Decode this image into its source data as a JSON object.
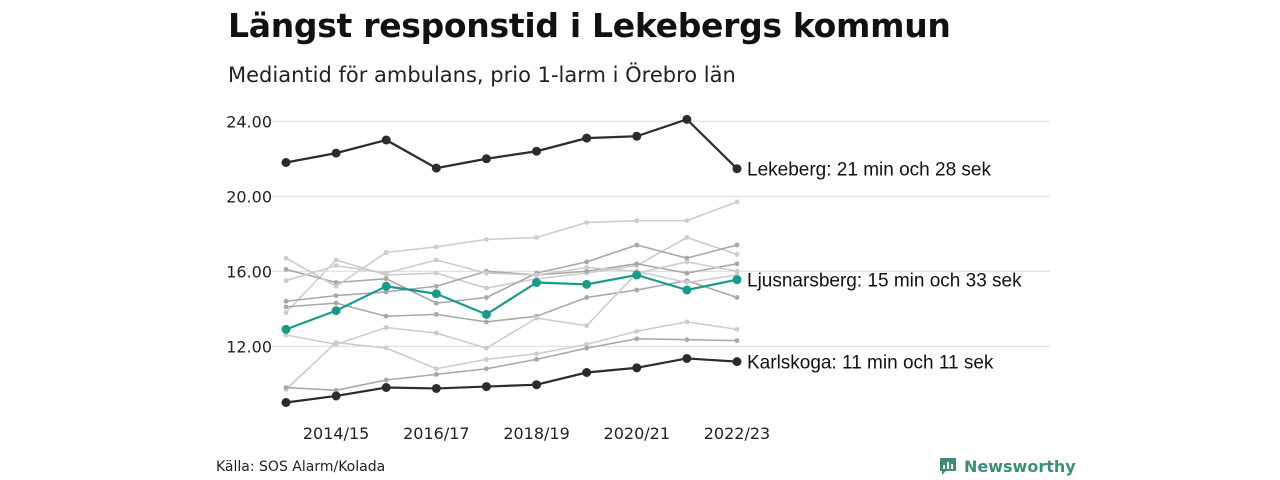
{
  "header": {
    "title": "Längst responstid i Lekebergs kommun",
    "subtitle": "Mediantid för ambulans, prio 1-larm i Örebro län"
  },
  "footer": {
    "source": "Källa: SOS Alarm/Kolada",
    "brand": "Newsworthy"
  },
  "colors": {
    "dark": "#2b2b30",
    "teal": "#1a9a88",
    "grey_light": "#cccccc",
    "grey_mid": "#a8a8a8",
    "grid": "#d9d9d9",
    "brand": "#3b8f7a"
  },
  "chart_data": {
    "type": "line",
    "x": [
      "2013/14",
      "2014/15",
      "2015/16",
      "2016/17",
      "2017/18",
      "2018/19",
      "2019/20",
      "2020/21",
      "2021/22",
      "2022/23"
    ],
    "x_tick_labels": [
      "2014/15",
      "2016/17",
      "2018/19",
      "2020/21",
      "2022/23"
    ],
    "y_ticks": [
      "12.00",
      "16.00",
      "20.00",
      "24.00"
    ],
    "ylim": [
      8.8,
      25.2
    ],
    "grid": "horizontal",
    "highlighted": [
      {
        "name": "Lekeberg",
        "label": "Lekeberg: 21 min och 28 sek",
        "color": "#2b2b30",
        "values": [
          21.8,
          22.3,
          23.0,
          21.5,
          22.0,
          22.4,
          23.1,
          23.2,
          24.1,
          21.47
        ]
      },
      {
        "name": "Ljusnarsberg",
        "label": "Ljusnarsberg: 15 min och 33 sek",
        "color": "#1a9a88",
        "values": [
          12.9,
          13.9,
          15.2,
          14.8,
          13.7,
          15.4,
          15.3,
          15.8,
          15.0,
          15.55
        ]
      },
      {
        "name": "Karlskoga",
        "label": "Karlskoga: 11 min och 11 sek",
        "color": "#2b2b30",
        "values": [
          9.0,
          9.35,
          9.8,
          9.75,
          9.85,
          9.95,
          10.6,
          10.85,
          11.35,
          11.18
        ]
      }
    ],
    "background_series": [
      {
        "color": "#cccccc",
        "values": [
          13.8,
          16.6,
          15.8,
          15.9,
          15.1,
          15.6,
          15.9,
          16.3,
          17.8,
          16.9
        ]
      },
      {
        "color": "#a8a8a8",
        "values": [
          16.1,
          15.4,
          15.6,
          14.3,
          14.6,
          15.9,
          16.5,
          17.4,
          16.7,
          17.4
        ]
      },
      {
        "color": "#cccccc",
        "values": [
          16.7,
          15.2,
          17.0,
          17.3,
          17.7,
          17.8,
          18.6,
          18.7,
          18.7,
          19.7
        ]
      },
      {
        "color": "#a8a8a8",
        "values": [
          14.4,
          14.7,
          14.9,
          15.2,
          16.0,
          15.8,
          16.0,
          16.4,
          15.9,
          16.4
        ]
      },
      {
        "color": "#a8a8a8",
        "values": [
          14.1,
          14.3,
          13.6,
          13.7,
          13.3,
          13.6,
          14.6,
          15.0,
          15.5,
          14.6
        ]
      },
      {
        "color": "#cccccc",
        "values": [
          15.5,
          16.3,
          15.9,
          16.6,
          15.9,
          15.8,
          16.2,
          16.0,
          15.4,
          15.8
        ]
      },
      {
        "color": "#cccccc",
        "values": [
          12.6,
          12.1,
          13.0,
          12.7,
          11.9,
          13.5,
          13.1,
          15.9,
          16.5,
          16.0
        ]
      },
      {
        "color": "#cccccc",
        "values": [
          9.7,
          12.2,
          11.9,
          10.8,
          11.3,
          11.6,
          12.1,
          12.8,
          13.3,
          12.9
        ]
      },
      {
        "color": "#a8a8a8",
        "values": [
          9.8,
          9.65,
          10.2,
          10.5,
          10.8,
          11.3,
          11.9,
          12.4,
          12.35,
          12.3
        ]
      }
    ]
  }
}
